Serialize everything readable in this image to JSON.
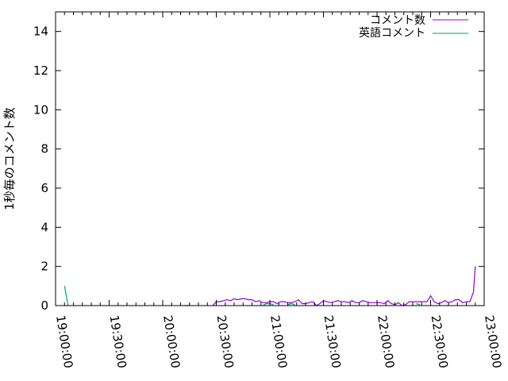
{
  "chart_data": {
    "type": "line",
    "title": "",
    "xlabel": "",
    "ylabel": "1秒毎のコメント数",
    "xlim": [
      "19:00:00",
      "23:00:00"
    ],
    "ylim": [
      0,
      15
    ],
    "grid": false,
    "legend_placement": "top-right",
    "x_tick_labels": [
      "19:00:00",
      "19:30:00",
      "20:00:00",
      "20:30:00",
      "21:00:00",
      "21:30:00",
      "22:00:00",
      "22:30:00",
      "23:00:00"
    ],
    "y_tick_labels": [
      "0",
      "2",
      "4",
      "6",
      "8",
      "10",
      "12",
      "14"
    ],
    "series": [
      {
        "name": "コメント数",
        "color": "#9400d3",
        "segments": [
          [
            [
              "20:12",
              0
            ],
            [
              "20:15",
              0
            ]
          ],
          [
            [
              "20:28",
              0
            ],
            [
              "20:30",
              0.2
            ],
            [
              "20:32",
              0.2
            ],
            [
              "20:34",
              0.25
            ],
            [
              "20:36",
              0.3
            ],
            [
              "20:38",
              0.25
            ],
            [
              "20:40",
              0.35
            ],
            [
              "20:42",
              0.3
            ],
            [
              "20:44",
              0.35
            ],
            [
              "20:46",
              0.35
            ],
            [
              "20:48",
              0.3
            ],
            [
              "20:50",
              0.3
            ],
            [
              "20:52",
              0.2
            ],
            [
              "20:54",
              0.25
            ],
            [
              "20:56",
              0.15
            ],
            [
              "20:58",
              0.15
            ],
            [
              "21:00",
              0.2
            ],
            [
              "21:02",
              0.2
            ],
            [
              "21:04",
              0.1
            ],
            [
              "21:06",
              0.2
            ],
            [
              "21:08",
              0.2
            ],
            [
              "21:10",
              0.15
            ],
            [
              "21:12",
              0.15
            ],
            [
              "21:14",
              0.2
            ],
            [
              "21:16",
              0.3
            ],
            [
              "21:18",
              0.1
            ],
            [
              "21:20",
              0.1
            ],
            [
              "21:22",
              0.15
            ],
            [
              "21:24",
              0.2
            ],
            [
              "21:26",
              0
            ],
            [
              "21:28",
              0.1
            ],
            [
              "21:30",
              0.25
            ],
            [
              "21:32",
              0.2
            ],
            [
              "21:34",
              0.15
            ],
            [
              "21:36",
              0.2
            ],
            [
              "21:38",
              0.25
            ],
            [
              "21:40",
              0.2
            ],
            [
              "21:42",
              0.2
            ],
            [
              "21:44",
              0.15
            ],
            [
              "21:46",
              0.25
            ],
            [
              "21:48",
              0.15
            ],
            [
              "21:50",
              0.15
            ],
            [
              "21:52",
              0.25
            ],
            [
              "21:54",
              0.2
            ],
            [
              "21:56",
              0.15
            ],
            [
              "21:58",
              0.15
            ],
            [
              "22:00",
              0.15
            ],
            [
              "22:02",
              0.15
            ],
            [
              "22:04",
              0.1
            ],
            [
              "22:06",
              0.25
            ],
            [
              "22:08",
              0.1
            ],
            [
              "22:10",
              0.05
            ],
            [
              "22:12",
              0.15
            ],
            [
              "22:14",
              0
            ],
            [
              "22:16",
              0.05
            ],
            [
              "22:18",
              0.2
            ],
            [
              "22:20",
              0.2
            ],
            [
              "22:22",
              0.2
            ],
            [
              "22:24",
              0.2
            ],
            [
              "22:26",
              0.2
            ],
            [
              "22:28",
              0.2
            ],
            [
              "22:30",
              0.5
            ],
            [
              "22:32",
              0.2
            ],
            [
              "22:34",
              0.1
            ],
            [
              "22:36",
              0.15
            ],
            [
              "22:38",
              0.25
            ],
            [
              "22:40",
              0.15
            ],
            [
              "22:42",
              0.2
            ],
            [
              "22:44",
              0.3
            ],
            [
              "22:46",
              0.3
            ],
            [
              "22:48",
              0.15
            ],
            [
              "22:50",
              0.2
            ],
            [
              "22:52",
              0.2
            ],
            [
              "22:54",
              0.7
            ],
            [
              "22:55",
              2
            ]
          ]
        ]
      },
      {
        "name": "英語コメント",
        "color": "#009e73",
        "segments": [
          [
            [
              "19:05",
              1
            ],
            [
              "19:07",
              0
            ]
          ],
          [
            [
              "20:56",
              0
            ],
            [
              "20:58",
              0.1
            ],
            [
              "21:00",
              0.1
            ],
            [
              "21:02",
              0.05
            ]
          ],
          [
            [
              "21:10",
              0.05
            ],
            [
              "21:12",
              0.1
            ],
            [
              "21:14",
              0.05
            ]
          ],
          [
            [
              "22:22",
              0.1
            ],
            [
              "22:24",
              0.05
            ]
          ]
        ]
      }
    ]
  }
}
